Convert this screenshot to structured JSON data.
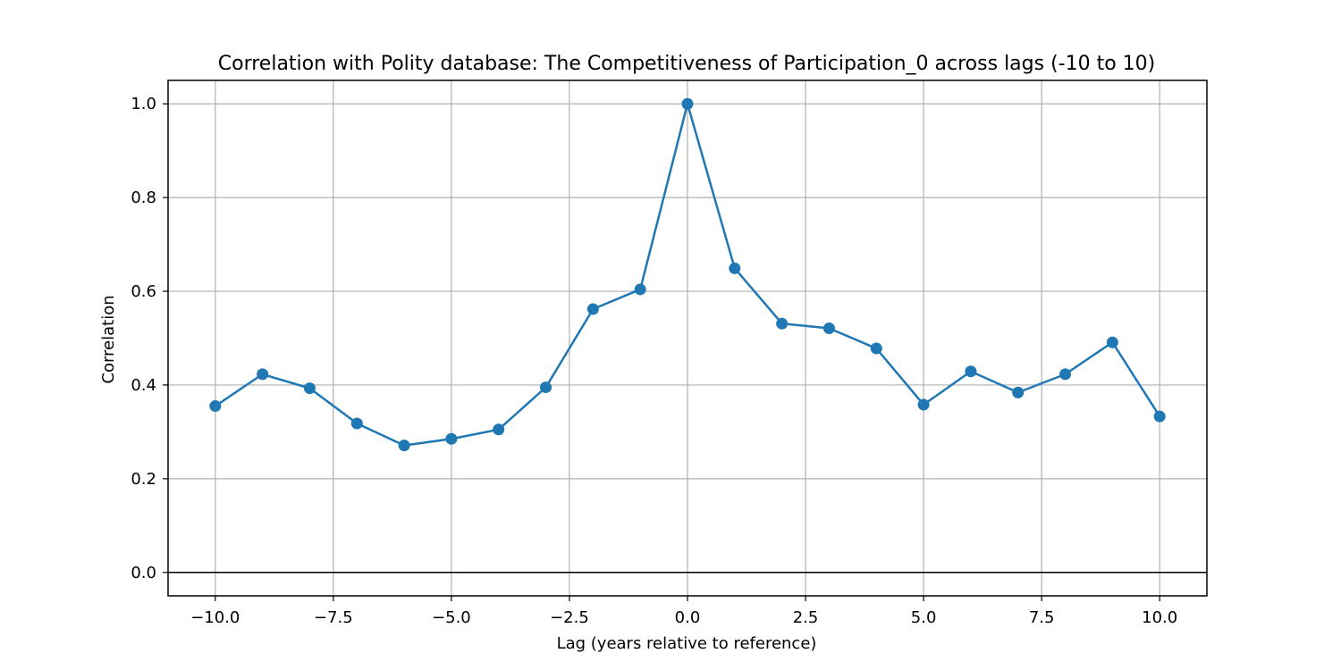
{
  "chart_data": {
    "type": "line",
    "title": "Correlation with Polity database: The Competitiveness of Participation_0 across lags (-10 to 10)",
    "xlabel": "Lag (years relative to reference)",
    "ylabel": "Correlation",
    "xlim": [
      -11,
      11
    ],
    "ylim": [
      -0.05,
      1.05
    ],
    "xticks": [
      -10.0,
      -7.5,
      -5.0,
      -2.5,
      0.0,
      2.5,
      5.0,
      7.5,
      10.0
    ],
    "xtick_labels": [
      "−10.0",
      "−7.5",
      "−5.0",
      "−2.5",
      "0.0",
      "2.5",
      "5.0",
      "7.5",
      "10.0"
    ],
    "yticks": [
      0.0,
      0.2,
      0.4,
      0.6,
      0.8,
      1.0
    ],
    "ytick_labels": [
      "0.0",
      "0.2",
      "0.4",
      "0.6",
      "0.8",
      "1.0"
    ],
    "grid": true,
    "reference_line_y": 0,
    "color": "#1f77b4",
    "series": [
      {
        "x": [
          -10,
          -9,
          -8,
          -7,
          -6,
          -5,
          -4,
          -3,
          -2,
          -1,
          0,
          1,
          2,
          3,
          4,
          5,
          6,
          7,
          8,
          9,
          10
        ],
        "y": [
          0.355,
          0.423,
          0.393,
          0.318,
          0.271,
          0.285,
          0.305,
          0.395,
          0.562,
          0.604,
          1.0,
          0.649,
          0.531,
          0.521,
          0.478,
          0.358,
          0.429,
          0.384,
          0.423,
          0.491,
          0.333
        ]
      }
    ]
  }
}
